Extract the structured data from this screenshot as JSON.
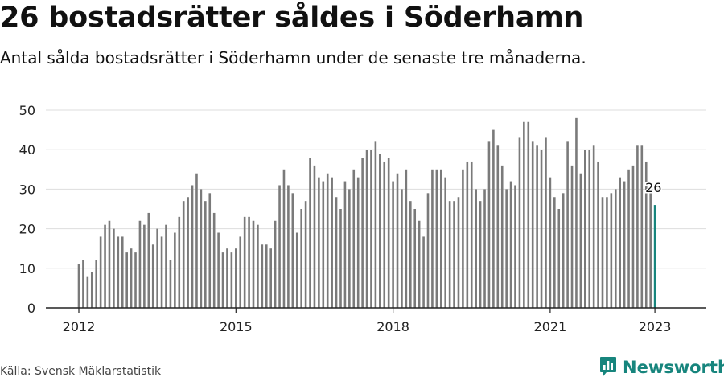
{
  "header": {
    "title": "26 bostadsrätter såldes i Söderhamn",
    "subtitle": "Antal sålda bostadsrätter i Söderhamn under de senaste tre månaderna."
  },
  "footer": {
    "source": "Källa: Svensk Mäklarstatistik",
    "brand": "Newsworthy"
  },
  "colors": {
    "bar": "#7a7a7a",
    "highlight": "#17857d",
    "grid": "#dddddd",
    "axis": "#222222"
  },
  "chart_data": {
    "type": "bar",
    "title": "26 bostadsrätter såldes i Söderhamn",
    "subtitle": "Antal sålda bostadsrätter i Söderhamn under de senaste tre månaderna.",
    "xlabel": "",
    "ylabel": "",
    "ylim": [
      0,
      50
    ],
    "yticks": [
      0,
      10,
      20,
      30,
      40,
      50
    ],
    "xticks": [
      "2012",
      "2015",
      "2018",
      "2021",
      "2023"
    ],
    "grid": true,
    "highlight_label": "26",
    "start_period": "2012-01",
    "end_period": "2023-01",
    "values": [
      11,
      12,
      8,
      9,
      12,
      18,
      21,
      22,
      20,
      18,
      18,
      14,
      15,
      14,
      22,
      21,
      24,
      16,
      20,
      18,
      21,
      12,
      19,
      23,
      27,
      28,
      31,
      34,
      30,
      27,
      29,
      24,
      19,
      14,
      15,
      14,
      15,
      18,
      23,
      23,
      22,
      21,
      16,
      16,
      15,
      22,
      31,
      35,
      31,
      29,
      19,
      25,
      27,
      38,
      36,
      33,
      32,
      34,
      33,
      28,
      25,
      32,
      30,
      35,
      33,
      38,
      40,
      40,
      42,
      39,
      37,
      38,
      32,
      34,
      30,
      35,
      27,
      25,
      22,
      18,
      29,
      35,
      35,
      35,
      33,
      27,
      27,
      28,
      35,
      37,
      37,
      30,
      27,
      30,
      42,
      45,
      41,
      36,
      30,
      32,
      31,
      43,
      47,
      47,
      42,
      41,
      40,
      43,
      33,
      28,
      25,
      29,
      42,
      36,
      48,
      34,
      40,
      40,
      41,
      37,
      28,
      28,
      29,
      30,
      33,
      32,
      35,
      36,
      41,
      41,
      37,
      29,
      26
    ]
  }
}
